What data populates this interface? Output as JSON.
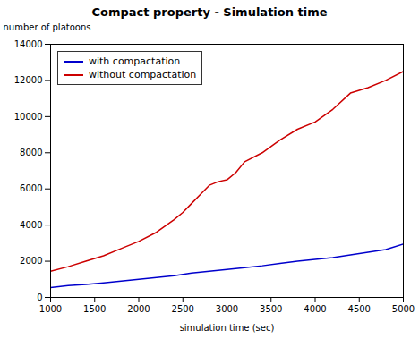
{
  "chart_data": {
    "type": "line",
    "title": "Compact property - Simulation time",
    "x_label": "simulation time (sec)",
    "y_label": "number of platoons",
    "xlim": [
      1000,
      5000
    ],
    "ylim": [
      0,
      14000
    ],
    "xticks": [
      1000,
      1500,
      2000,
      2500,
      3000,
      3500,
      4000,
      4500,
      5000
    ],
    "yticks": [
      0,
      2000,
      4000,
      6000,
      8000,
      10000,
      12000,
      14000
    ],
    "series": [
      {
        "name": "with compactation",
        "color": "#0000cc",
        "x": [
          1000,
          1200,
          1400,
          1600,
          1800,
          2000,
          2200,
          2400,
          2600,
          2800,
          3000,
          3200,
          3400,
          3600,
          3800,
          4000,
          4200,
          4400,
          4600,
          4800,
          5000
        ],
        "values": [
          550,
          650,
          720,
          800,
          900,
          1000,
          1100,
          1200,
          1350,
          1450,
          1550,
          1650,
          1750,
          1880,
          2000,
          2100,
          2200,
          2350,
          2500,
          2650,
          2950
        ]
      },
      {
        "name": "without compactation",
        "color": "#cc0000",
        "x": [
          1000,
          1200,
          1400,
          1600,
          1800,
          2000,
          2200,
          2400,
          2500,
          2600,
          2700,
          2800,
          2900,
          3000,
          3100,
          3200,
          3400,
          3600,
          3800,
          4000,
          4200,
          4400,
          4600,
          4800,
          5000
        ],
        "values": [
          1450,
          1700,
          2000,
          2300,
          2700,
          3100,
          3600,
          4300,
          4700,
          5200,
          5700,
          6200,
          6400,
          6500,
          6900,
          7500,
          8000,
          8700,
          9300,
          9700,
          10400,
          11300,
          11600,
          12000,
          12500
        ]
      }
    ],
    "legend": "upper left",
    "grid": false
  }
}
